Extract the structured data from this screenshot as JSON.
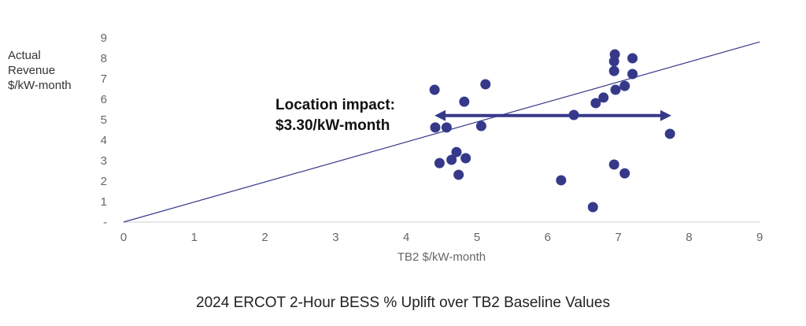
{
  "chart_data": {
    "type": "scatter",
    "title": "2024 ERCOT 2-Hour BESS % Uplift over TB2 Baseline Values",
    "xlabel": "TB2 $/kW-month",
    "ylabel_lines": [
      "Actual",
      "Revenue",
      "$/kW-month"
    ],
    "xlim": [
      0,
      9
    ],
    "ylim": [
      0,
      9
    ],
    "x_ticks": [
      "0",
      "1",
      "2",
      "3",
      "4",
      "5",
      "6",
      "7",
      "8",
      "9"
    ],
    "y_ticks": [
      "-",
      "1",
      "2",
      "3",
      "4",
      "5",
      "6",
      "7",
      "8",
      "9"
    ],
    "grid": false,
    "color": "#36398a",
    "reference_line": {
      "from": [
        0,
        0
      ],
      "to": [
        9,
        8.8
      ]
    },
    "annotation": {
      "lines": [
        "Location impact:",
        "$3.30/kW-month"
      ],
      "arrow_from": [
        4.4,
        5.2
      ],
      "arrow_to": [
        7.75,
        5.2
      ]
    },
    "points": [
      [
        4.4,
        6.46
      ],
      [
        5.12,
        6.73
      ],
      [
        4.82,
        5.88
      ],
      [
        4.41,
        4.62
      ],
      [
        4.57,
        4.62
      ],
      [
        5.06,
        4.69
      ],
      [
        4.71,
        3.42
      ],
      [
        4.47,
        2.88
      ],
      [
        4.64,
        3.04
      ],
      [
        4.84,
        3.12
      ],
      [
        4.74,
        2.31
      ],
      [
        6.95,
        8.19
      ],
      [
        6.94,
        7.85
      ],
      [
        7.2,
        8.0
      ],
      [
        6.94,
        7.38
      ],
      [
        7.2,
        7.23
      ],
      [
        7.09,
        6.65
      ],
      [
        6.96,
        6.46
      ],
      [
        6.79,
        6.08
      ],
      [
        6.68,
        5.81
      ],
      [
        6.37,
        5.23
      ],
      [
        7.73,
        4.31
      ],
      [
        6.94,
        2.81
      ],
      [
        7.09,
        2.38
      ],
      [
        6.19,
        2.04
      ],
      [
        6.64,
        0.73
      ]
    ]
  }
}
